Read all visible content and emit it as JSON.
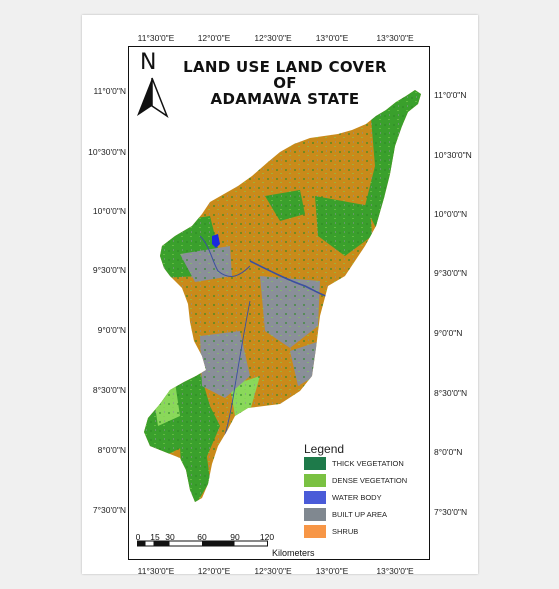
{
  "title": {
    "line1": "LAND USE LAND COVER",
    "line2": "OF",
    "line3": "ADAMAWA STATE"
  },
  "north_arrow": {
    "label": "N",
    "icon": "north-arrow-icon"
  },
  "graticule": {
    "top": [
      "11°30'0\"E",
      "12°0'0\"E",
      "12°30'0\"E",
      "13°0'0\"E",
      "13°30'0\"E"
    ],
    "bottom": [
      "11°30'0\"E",
      "12°0'0\"E",
      "12°30'0\"E",
      "13°0'0\"E",
      "13°30'0\"E"
    ],
    "left": [
      "11°0'0\"N",
      "10°30'0\"N",
      "10°0'0\"N",
      "9°30'0\"N",
      "9°0'0\"N",
      "8°30'0\"N",
      "8°0'0\"N",
      "7°30'0\"N"
    ],
    "right": [
      "11°0'0\"N",
      "10°30'0\"N",
      "10°0'0\"N",
      "9°30'0\"N",
      "9°0'0\"N",
      "8°30'0\"N",
      "8°0'0\"N",
      "7°30'0\"N"
    ]
  },
  "legend": {
    "title": "Legend",
    "items": [
      {
        "label": "THICK VEGETATION",
        "color": "#1e7a4a"
      },
      {
        "label": "DENSE VEGETATION",
        "color": "#7ac142"
      },
      {
        "label": "WATER BODY",
        "color": "#4a5bd8"
      },
      {
        "label": "BUILT UP AREA",
        "color": "#808890"
      },
      {
        "label": "SHRUB",
        "color": "#f79646"
      }
    ]
  },
  "map_colors": {
    "shrub": "#c98a1a",
    "green": "#3aa02c",
    "light_green": "#8ad85a",
    "built_up": "#8a8f99",
    "water": "#1a2adf",
    "river": "#3b4fa0"
  },
  "scale_bar": {
    "ticks": [
      "0",
      "15",
      "30",
      "60",
      "90",
      "120"
    ],
    "units": "Kilometers"
  }
}
